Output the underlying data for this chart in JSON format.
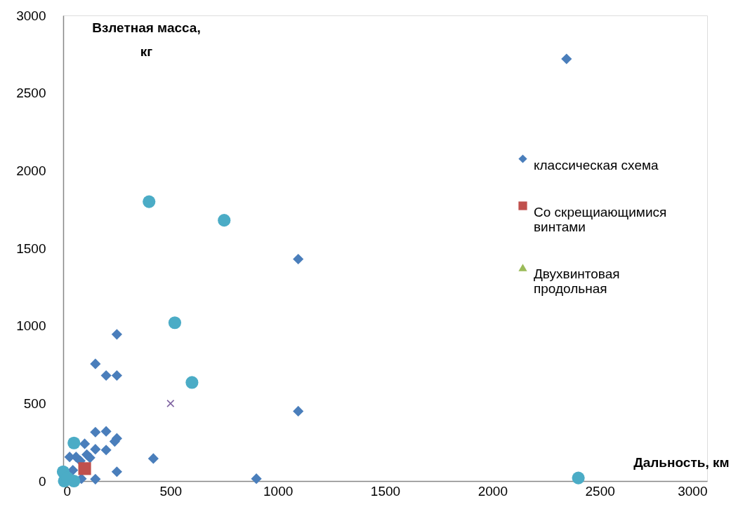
{
  "chart_data": {
    "type": "scatter",
    "xlabel": "Дальность, км",
    "ylabel": "Взлетная масса, кг",
    "xlim": [
      0,
      3000
    ],
    "xticks": [
      0,
      500,
      1000,
      1500,
      2000,
      2500,
      3000
    ],
    "ylim": [
      0,
      3000
    ],
    "yticks": [
      0,
      500,
      1000,
      1500,
      2000,
      2500,
      3000
    ],
    "grid": false,
    "legend": "right",
    "series": [
      {
        "name": "классическая схема",
        "color": "#4a7ebb",
        "marker": "diamond",
        "x": [
          2345,
          1095,
          1095,
          900,
          250,
          150,
          200,
          250,
          420,
          250,
          150,
          150,
          200,
          250,
          240,
          100,
          150,
          200,
          30,
          60,
          125,
          45,
          85,
          110,
          80
        ],
        "values": [
          2720,
          1430,
          450,
          15,
          945,
          755,
          680,
          680,
          145,
          60,
          12,
          315,
          320,
          275,
          255,
          240,
          205,
          200,
          155,
          155,
          150,
          70,
          15,
          170,
          130
        ]
      },
      {
        "name": "Со скрещиающимися винтами",
        "color": "#c0504d",
        "marker": "square",
        "x": [
          100
        ],
        "values": [
          80
        ]
      },
      {
        "name": "Двухвинтовая продольная",
        "color": "#9bbb59",
        "marker": "triangle"
      },
      {
        "color": "#8064a2",
        "marker": "cross",
        "x": [
          500
        ],
        "values": [
          500
        ]
      },
      {
        "color": "#4bacc6",
        "marker": "circle",
        "x": [
          400,
          750,
          520,
          600,
          2400,
          50,
          0,
          5,
          50,
          20
        ],
        "values": [
          1800,
          1680,
          1020,
          635,
          20,
          245,
          60,
          0,
          0,
          20
        ]
      }
    ]
  }
}
